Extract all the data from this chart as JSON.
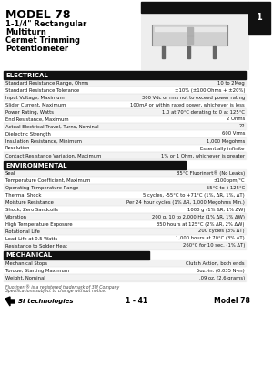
{
  "title": "MODEL 78",
  "subtitle_lines": [
    "1-1/4\" Rectangular",
    "Multiturn",
    "Cermet Trimming",
    "Potentiometer"
  ],
  "page_number": "1",
  "section_electrical": "ELECTRICAL",
  "electrical_specs": [
    [
      "Standard Resistance Range, Ohms",
      "10 to 2Meg"
    ],
    [
      "Standard Resistance Tolerance",
      "±10% (±100 Ohms + ±20%)"
    ],
    [
      "Input Voltage, Maximum",
      "300 Vdc or rms not to exceed power rating"
    ],
    [
      "Slider Current, Maximum",
      "100mA or within rated power, whichever is less"
    ],
    [
      "Power Rating, Watts",
      "1.0 at 70°C derating to 0 at 125°C"
    ],
    [
      "End Resistance, Maximum",
      "2 Ohms"
    ],
    [
      "Actual Electrical Travel, Turns, Nominal",
      "22"
    ],
    [
      "Dielectric Strength",
      "600 Vrms"
    ],
    [
      "Insulation Resistance, Minimum",
      "1,000 Megohms"
    ],
    [
      "Resolution",
      "Essentially infinite"
    ],
    [
      "Contact Resistance Variation, Maximum",
      "1% or 1 Ohm, whichever is greater"
    ]
  ],
  "section_environmental": "ENVIRONMENTAL",
  "environmental_specs": [
    [
      "Seal",
      "85°C Fluorinert® (No Leaks)"
    ],
    [
      "Temperature Coefficient, Maximum",
      "±100ppm/°C"
    ],
    [
      "Operating Temperature Range",
      "-55°C to +125°C"
    ],
    [
      "Thermal Shock",
      "5 cycles, -55°C to +71°C (1%, ΔR, 1%, ΔT)"
    ],
    [
      "Moisture Resistance",
      "Per 24 hour cycles (1% ΔR, 1,000 Megohms Min.)"
    ],
    [
      "Shock, Zero Sandcoils",
      "1000 g (1% ΔR, 1% ΔW)"
    ],
    [
      "Vibration",
      "200 g, 10 to 2,000 Hz (1% ΔR, 1% ΔW)"
    ],
    [
      "High Temperature Exposure",
      "350 hours at 125°C (2% ΔR, 2% ΔW)"
    ],
    [
      "Rotational Life",
      "200 cycles (3% ΔT)"
    ],
    [
      "Load Life at 0.5 Watts",
      "1,000 hours at 70°C (3% ΔT)"
    ],
    [
      "Resistance to Solder Heat",
      "260°C for 10 sec. (1% ΔT)"
    ]
  ],
  "section_mechanical": "MECHANICAL",
  "mechanical_specs": [
    [
      "Mechanical Stops",
      "Clutch Action, both ends"
    ],
    [
      "Torque, Starting Maximum",
      "5oz.-in. (0.035 N-m)"
    ],
    [
      "Weight, Nominal",
      ".09 oz. (2.6 grams)"
    ]
  ],
  "footer_note1": "Fluorinert® is a registered trademark of 3M Company",
  "footer_note2": "Specifications subject to change without notice.",
  "footer_left": "1 - 41",
  "footer_right": "Model 78",
  "bg_color": "#ffffff"
}
